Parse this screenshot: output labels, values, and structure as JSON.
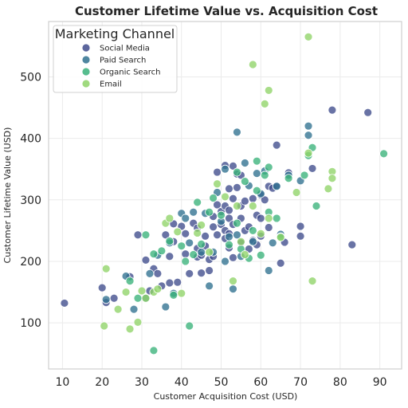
{
  "chart_data": {
    "type": "scatter",
    "title": "Customer Lifetime Value vs. Acquisition Cost",
    "xlabel": "Customer Acquisition Cost (USD)",
    "ylabel": "Customer Lifetime Value (USD)",
    "xlim": [
      6.5,
      95.5
    ],
    "ylim": [
      25,
      590
    ],
    "xticks": [
      10,
      20,
      30,
      40,
      50,
      60,
      70,
      80,
      90
    ],
    "yticks": [
      100,
      200,
      300,
      400,
      500
    ],
    "grid": true,
    "legend": {
      "title": "Marketing Channel",
      "placement": "top-left"
    },
    "series": [
      {
        "name": "Social Media",
        "color": "#3f4b8c",
        "points": [
          [
            10.5,
            132
          ],
          [
            20,
            157
          ],
          [
            21,
            133
          ],
          [
            23,
            140
          ],
          [
            27,
            175
          ],
          [
            29,
            243
          ],
          [
            31,
            202
          ],
          [
            32,
            152
          ],
          [
            33,
            188
          ],
          [
            34,
            180
          ],
          [
            35,
            160
          ],
          [
            36,
            243
          ],
          [
            37,
            208
          ],
          [
            37,
            165
          ],
          [
            38,
            261
          ],
          [
            38,
            232
          ],
          [
            39,
            166
          ],
          [
            40,
            257
          ],
          [
            41,
            245
          ],
          [
            41,
            212
          ],
          [
            42,
            180
          ],
          [
            43,
            262
          ],
          [
            44,
            254
          ],
          [
            44,
            221
          ],
          [
            44,
            207
          ],
          [
            45,
            210
          ],
          [
            45,
            181
          ],
          [
            46,
            241
          ],
          [
            46,
            225
          ],
          [
            47,
            203
          ],
          [
            47,
            185
          ],
          [
            48,
            273
          ],
          [
            48,
            256
          ],
          [
            48,
            208
          ],
          [
            49,
            345
          ],
          [
            49,
            292
          ],
          [
            49,
            243
          ],
          [
            50,
            281
          ],
          [
            50,
            260
          ],
          [
            51,
            356
          ],
          [
            51,
            290
          ],
          [
            51,
            250
          ],
          [
            51,
            237
          ],
          [
            52,
            318
          ],
          [
            52,
            283
          ],
          [
            52,
            270
          ],
          [
            52,
            245
          ],
          [
            52,
            222
          ],
          [
            53,
            355
          ],
          [
            53,
            302
          ],
          [
            53,
            260
          ],
          [
            53,
            206
          ],
          [
            54,
            342
          ],
          [
            54,
            320
          ],
          [
            55,
            340
          ],
          [
            55,
            290
          ],
          [
            55,
            270
          ],
          [
            55,
            230
          ],
          [
            56,
            298
          ],
          [
            56,
            250
          ],
          [
            57,
            256
          ],
          [
            57,
            220
          ],
          [
            58,
            302
          ],
          [
            58,
            234
          ],
          [
            59,
            275
          ],
          [
            59,
            227
          ],
          [
            60,
            308
          ],
          [
            60,
            270
          ],
          [
            60,
            241
          ],
          [
            61,
            300
          ],
          [
            62,
            322
          ],
          [
            62,
            255
          ],
          [
            63,
            319
          ],
          [
            64,
            389
          ],
          [
            64,
            323
          ],
          [
            65,
            197
          ],
          [
            66,
            231
          ],
          [
            67,
            344
          ],
          [
            70,
            257
          ],
          [
            70,
            241
          ],
          [
            73,
            351
          ],
          [
            78,
            446
          ],
          [
            83,
            227
          ],
          [
            87,
            442
          ]
        ]
      },
      {
        "name": "Paid Search",
        "color": "#30718f",
        "points": [
          [
            21,
            138
          ],
          [
            26,
            176
          ],
          [
            28,
            122
          ],
          [
            31,
            140
          ],
          [
            32,
            180
          ],
          [
            34,
            210
          ],
          [
            36,
            126
          ],
          [
            37,
            230
          ],
          [
            38,
            148
          ],
          [
            40,
            278
          ],
          [
            41,
            270
          ],
          [
            42,
            230
          ],
          [
            43,
            280
          ],
          [
            45,
            215
          ],
          [
            46,
            278
          ],
          [
            47,
            160
          ],
          [
            48,
            215
          ],
          [
            49,
            312
          ],
          [
            50,
            265
          ],
          [
            51,
            350
          ],
          [
            51,
            200
          ],
          [
            52,
            240
          ],
          [
            53,
            155
          ],
          [
            54,
            410
          ],
          [
            54,
            243
          ],
          [
            55,
            208
          ],
          [
            56,
            360
          ],
          [
            57,
            323
          ],
          [
            58,
            232
          ],
          [
            59,
            343
          ],
          [
            60,
            310
          ],
          [
            61,
            347
          ],
          [
            62,
            185
          ],
          [
            63,
            230
          ],
          [
            64,
            322
          ],
          [
            65,
            244
          ],
          [
            67,
            340
          ],
          [
            70,
            331
          ],
          [
            72,
            405
          ],
          [
            72,
            420
          ]
        ]
      },
      {
        "name": "Organic Search",
        "color": "#3ab27a",
        "points": [
          [
            27,
            168
          ],
          [
            29,
            140
          ],
          [
            31,
            243
          ],
          [
            33,
            212
          ],
          [
            35,
            217
          ],
          [
            37,
            233
          ],
          [
            38,
            145
          ],
          [
            40,
            225
          ],
          [
            41,
            200
          ],
          [
            42,
            95
          ],
          [
            43,
            211
          ],
          [
            44,
            296
          ],
          [
            45,
            228
          ],
          [
            47,
            280
          ],
          [
            48,
            303
          ],
          [
            50,
            275
          ],
          [
            52,
            227
          ],
          [
            54,
            345
          ],
          [
            54,
            262
          ],
          [
            55,
            220
          ],
          [
            56,
            330
          ],
          [
            57,
            205
          ],
          [
            58,
            250
          ],
          [
            59,
            315
          ],
          [
            59,
            363
          ],
          [
            60,
            210
          ],
          [
            61,
            340
          ],
          [
            62,
            280
          ],
          [
            62,
            353
          ],
          [
            64,
            270
          ],
          [
            65,
            240
          ],
          [
            67,
            335
          ],
          [
            71,
            340
          ],
          [
            72,
            372
          ],
          [
            73,
            385
          ],
          [
            74,
            290
          ],
          [
            91,
            375
          ],
          [
            33,
            55
          ]
        ]
      },
      {
        "name": "Email",
        "color": "#8fd468",
        "points": [
          [
            20.5,
            95
          ],
          [
            21,
            188
          ],
          [
            24,
            122
          ],
          [
            26,
            150
          ],
          [
            27,
            90
          ],
          [
            29,
            101
          ],
          [
            30,
            152
          ],
          [
            31,
            140
          ],
          [
            33,
            150
          ],
          [
            34,
            155
          ],
          [
            36,
            262
          ],
          [
            37,
            270
          ],
          [
            39,
            248
          ],
          [
            40,
            148
          ],
          [
            44,
            246
          ],
          [
            45,
            259
          ],
          [
            47,
            215
          ],
          [
            49,
            326
          ],
          [
            51,
            305
          ],
          [
            53,
            168
          ],
          [
            54,
            290
          ],
          [
            55,
            232
          ],
          [
            56,
            211
          ],
          [
            58,
            520
          ],
          [
            58,
            290
          ],
          [
            60,
            245
          ],
          [
            61,
            456
          ],
          [
            62,
            478
          ],
          [
            62,
            270
          ],
          [
            65,
            239
          ],
          [
            69,
            312
          ],
          [
            72,
            376
          ],
          [
            72,
            565
          ],
          [
            73,
            168
          ],
          [
            77,
            318
          ],
          [
            78,
            346
          ],
          [
            78,
            335
          ]
        ]
      }
    ]
  }
}
